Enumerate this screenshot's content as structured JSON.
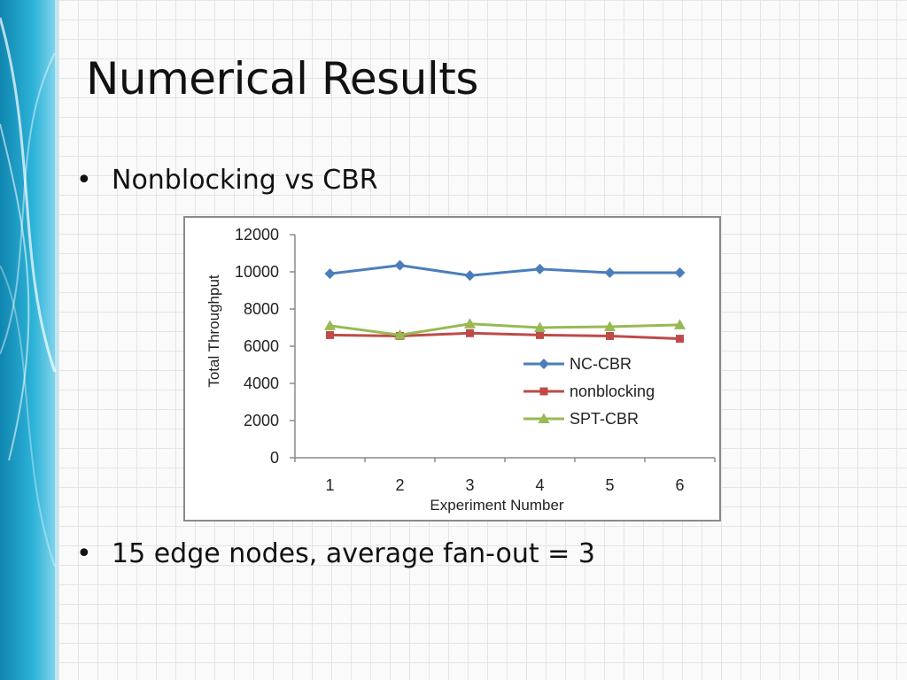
{
  "slide": {
    "title": "Numerical Results",
    "bullets": [
      "Nonblocking vs CBR",
      "15 edge nodes, average fan-out = 3"
    ],
    "bullet_glyph": "•"
  },
  "colors": {
    "sidebar_blue": "#1a9ec4",
    "nc_cbr": "#4a7ebb",
    "nonblocking": "#be4b48",
    "spt_cbr": "#98b954"
  },
  "chart_data": {
    "type": "line",
    "x": [
      1,
      2,
      3,
      4,
      5,
      6
    ],
    "categories": [
      "1",
      "2",
      "3",
      "4",
      "5",
      "6"
    ],
    "series": [
      {
        "name": "NC-CBR",
        "values": [
          9900,
          10350,
          9800,
          10150,
          9950,
          9950
        ],
        "color": "#4a7ebb",
        "marker": "diamond"
      },
      {
        "name": "nonblocking",
        "values": [
          6600,
          6550,
          6700,
          6600,
          6550,
          6400
        ],
        "color": "#be4b48",
        "marker": "square"
      },
      {
        "name": "SPT-CBR",
        "values": [
          7100,
          6600,
          7200,
          7000,
          7050,
          7150
        ],
        "color": "#98b954",
        "marker": "triangle"
      }
    ],
    "xlabel": "Experiment Number",
    "ylabel": "Total Throughput",
    "ylim": [
      0,
      12000
    ],
    "yticks": [
      0,
      2000,
      4000,
      6000,
      8000,
      10000,
      12000
    ],
    "grid": false,
    "legend_position": "right"
  }
}
